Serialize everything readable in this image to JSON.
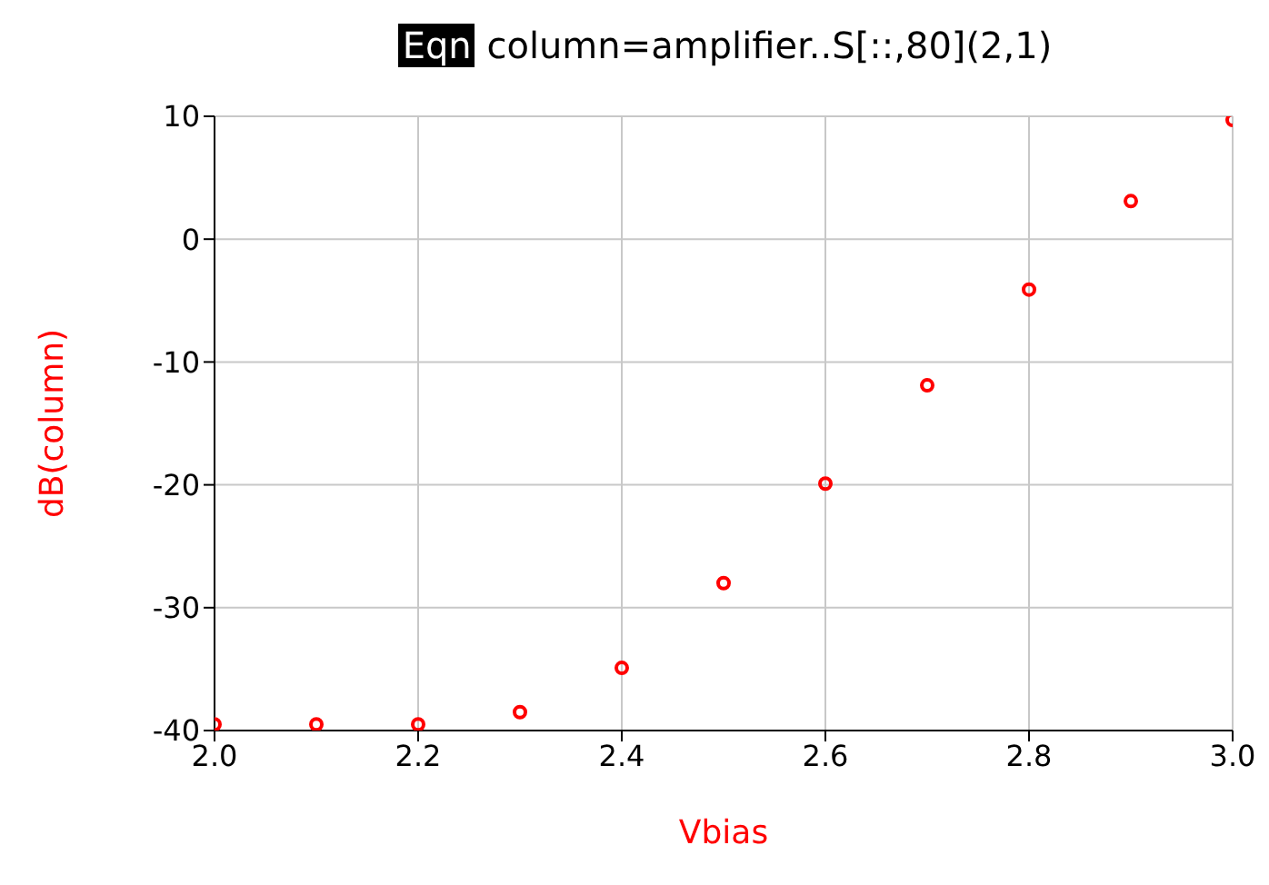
{
  "chart_data": {
    "type": "scatter",
    "title": "Eqn column=amplifier..S[::,80](2,1)",
    "xlabel": "Vbias",
    "ylabel": "dB(column)",
    "x": [
      2.0,
      2.1,
      2.2,
      2.3,
      2.4,
      2.5,
      2.6,
      2.7,
      2.8,
      2.9,
      3.0
    ],
    "series": [
      {
        "color": "#ff0000",
        "values": [
          -39.5,
          -39.5,
          -39.5,
          -38.5,
          -34.9,
          -28,
          -19.9,
          -11.9,
          -4.1,
          3.1,
          9.7
        ]
      }
    ],
    "xlim": [
      2.0,
      3.0
    ],
    "xticks": [
      {
        "value": 2.0,
        "label": "2.0"
      },
      {
        "value": 2.2,
        "label": "2.2"
      },
      {
        "value": 2.4,
        "label": "2.4"
      },
      {
        "value": 2.6,
        "label": "2.6"
      },
      {
        "value": 2.8,
        "label": "2.8"
      },
      {
        "value": 3.0,
        "label": "3.0"
      }
    ],
    "ylim": [
      -40,
      10
    ],
    "yticks": [
      -40,
      -30,
      -20,
      -10,
      0,
      10
    ],
    "grid": true,
    "marker": "circle"
  }
}
